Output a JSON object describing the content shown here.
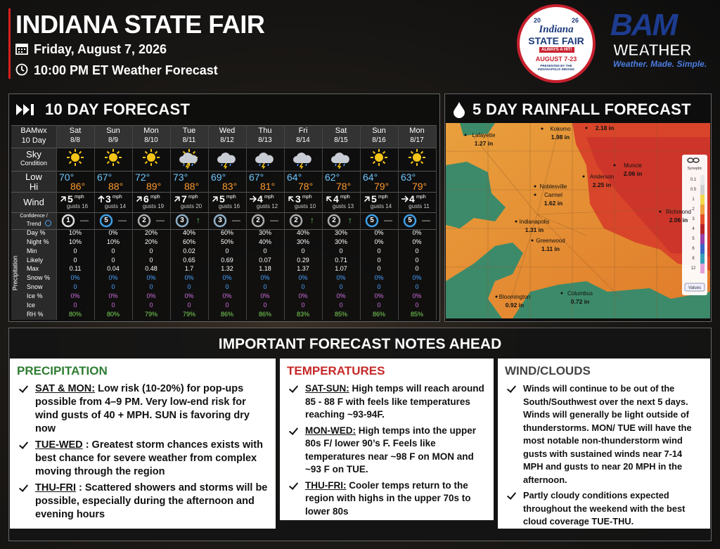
{
  "header": {
    "title": "INDIANA STATE FAIR",
    "date": "Friday, August 7, 2026",
    "subtitle": "10:00 PM ET Weather Forecast"
  },
  "fair_logo": {
    "year_left": "20",
    "year_right": "26",
    "name": "Indiana",
    "event": "STATE FAIR",
    "tagline": "ALWAYS A HIT!",
    "dates": "AUGUST 7-23",
    "presenter": "PRESENTED BY THE INDIANAPOLIS INDIANS"
  },
  "bam_logo": {
    "name": "BAM",
    "sub": "WEATHER",
    "slogan": "Weather. Made. Simple."
  },
  "ten_day": {
    "title": "10 DAY FORECAST",
    "corner": [
      "BAMwx",
      "10 Day"
    ],
    "sky_label": "Sky",
    "sky_sublabel": "Condition",
    "low_label": "Low",
    "hi_label": "Hi",
    "wind_label": "Wind",
    "wind_unit": "mph",
    "confidence_label": "Confidence /",
    "trend_label": "Trend",
    "precip_label": "Precipitation",
    "precip_rows": [
      "Day %",
      "Night %",
      "Min",
      "Likely",
      "Max",
      "Snow %",
      "Snow",
      "Ice %",
      "Ice",
      "RH %"
    ],
    "days": [
      {
        "name": "Sat",
        "date": "8/8",
        "low": "70°",
        "hi": "86°",
        "wind": "5",
        "gusts": "gusts 16",
        "confidence": "1",
        "trend": "—",
        "precip": [
          "10%",
          "10%",
          "0",
          "0",
          "0.11",
          "0%",
          "0",
          "0%",
          "0",
          "80%"
        ]
      },
      {
        "name": "Sun",
        "date": "8/9",
        "low": "67°",
        "hi": "88°",
        "wind": "3",
        "gusts": "gusts 14",
        "confidence": "5",
        "trend": "—",
        "precip": [
          "0%",
          "10%",
          "0",
          "0",
          "0.04",
          "0%",
          "0",
          "0%",
          "0",
          "80%"
        ]
      },
      {
        "name": "Mon",
        "date": "8/10",
        "low": "72°",
        "hi": "89°",
        "wind": "6",
        "gusts": "gusts 19",
        "confidence": "2",
        "trend": "—",
        "precip": [
          "20%",
          "20%",
          "0",
          "0",
          "0.48",
          "0%",
          "0",
          "0%",
          "0",
          "79%"
        ]
      },
      {
        "name": "Tue",
        "date": "8/11",
        "low": "73°",
        "hi": "88°",
        "wind": "7",
        "gusts": "gusts 20",
        "confidence": "3",
        "trend": "↑",
        "precip": [
          "40%",
          "60%",
          "0.02",
          "0.65",
          "1.7",
          "0%",
          "0",
          "0%",
          "0",
          "79%"
        ]
      },
      {
        "name": "Wed",
        "date": "8/12",
        "low": "69°",
        "hi": "83°",
        "wind": "5",
        "gusts": "gusts 16",
        "confidence": "3",
        "trend": "—",
        "precip": [
          "60%",
          "50%",
          "0",
          "0.69",
          "1.32",
          "0%",
          "0",
          "0%",
          "0",
          "86%"
        ]
      },
      {
        "name": "Thu",
        "date": "8/13",
        "low": "67°",
        "hi": "81°",
        "wind": "4",
        "gusts": "gusts 12",
        "confidence": "2",
        "trend": "—",
        "precip": [
          "30%",
          "40%",
          "0",
          "0.07",
          "1.18",
          "0%",
          "0",
          "0%",
          "0",
          "86%"
        ]
      },
      {
        "name": "Fri",
        "date": "8/14",
        "low": "64°",
        "hi": "78°",
        "wind": "3",
        "gusts": "gusts 10",
        "confidence": "2",
        "trend": "↑",
        "precip": [
          "40%",
          "30%",
          "0",
          "0.29",
          "1.37",
          "0%",
          "0",
          "0%",
          "0",
          "83%"
        ]
      },
      {
        "name": "Sat",
        "date": "8/15",
        "low": "62°",
        "hi": "78°",
        "wind": "4",
        "gusts": "gusts 13",
        "confidence": "2",
        "trend": "↑",
        "precip": [
          "30%",
          "30%",
          "0",
          "0.71",
          "1.07",
          "0%",
          "0",
          "0%",
          "0",
          "85%"
        ]
      },
      {
        "name": "Sun",
        "date": "8/16",
        "low": "64°",
        "hi": "79°",
        "wind": "5",
        "gusts": "gusts 14",
        "confidence": "5",
        "trend": "—",
        "precip": [
          "0%",
          "0%",
          "0",
          "0",
          "0",
          "0%",
          "0",
          "0%",
          "0",
          "86%"
        ]
      },
      {
        "name": "Mon",
        "date": "8/17",
        "low": "63°",
        "hi": "79°",
        "wind": "4",
        "gusts": "gusts 11",
        "confidence": "5",
        "trend": "—",
        "precip": [
          "0%",
          "0%",
          "0",
          "0",
          "0",
          "0%",
          "0",
          "0%",
          "0",
          "85%"
        ]
      }
    ]
  },
  "rainfall": {
    "title": "5 DAY RAINFALL FORECAST",
    "legend_title": "Synoptic",
    "legend_values": [
      "0.1",
      "0.5",
      "1",
      "2",
      "3",
      "4",
      "5",
      "6",
      "8",
      "12"
    ],
    "legend_button": "Values",
    "cities": [
      {
        "name": "Lafayette",
        "amount": "1.27 in"
      },
      {
        "name": "Kokomo",
        "amount": "1.98 in"
      },
      {
        "amount": "2.18 in"
      },
      {
        "name": "Muncie",
        "amount": "2.06 in"
      },
      {
        "name": "Anderson",
        "amount": "2.25 in"
      },
      {
        "name": "Noblesville"
      },
      {
        "name": "Carmel",
        "amount": "1.62 in"
      },
      {
        "name": "Richmond",
        "amount": "2.06 in"
      },
      {
        "name": "Indianapolis",
        "amount": "1.31 in"
      },
      {
        "name": "Greenwood",
        "amount": "1.11 in"
      },
      {
        "name": "Bloomington",
        "amount": "0.92 in"
      },
      {
        "name": "Columbus",
        "amount": "0.72 in"
      }
    ]
  },
  "notes": {
    "title": "IMPORTANT FORECAST NOTES AHEAD",
    "columns": [
      {
        "heading": "PRECIPITATION",
        "items": [
          {
            "lead": "SAT & MON:",
            "text": "Low risk (10-20%) for pop-ups possible from 4–9 PM.  Very low-end risk for wind gusts of 40 + MPH. SUN is favoring dry now"
          },
          {
            "lead": "TUE-WED",
            "text": ": Greatest storm chances exists with best chance for severe weather from complex moving through the region"
          },
          {
            "lead": "THU-FRI",
            "text": ": Scattered showers and storms will be possible, especially during the afternoon and evening hours"
          }
        ]
      },
      {
        "heading": "TEMPERATURES",
        "items": [
          {
            "lead": "SAT-SUN:",
            "text": "High temps will reach around 85 - 88 F with feels like temperatures reaching ~93-94F."
          },
          {
            "lead": "MON-WED:",
            "text": "High temps into the upper 80s F/ lower 90’s F.  Feels like temperatures near ~98 F on MON and ~93 F on TUE."
          },
          {
            "lead": "THU-FRI:",
            "text": "Cooler temps return to the region with highs in the upper 70s to lower 80s"
          }
        ]
      },
      {
        "heading": "WIND/CLOUDS",
        "items": [
          {
            "text": "Winds will continue to be out of the South/Southwest over the next 5 days. Winds will generally be light outside of thunderstorms.  MON/ TUE will have the most notable non-thunderstorm wind gusts with sustained winds near 7-14 MPH and gusts to near 20 MPH in the afternoon."
          },
          {
            "text": "Partly cloudy conditions expected throughout the weekend with the best cloud coverage TUE-THU."
          }
        ]
      }
    ]
  }
}
